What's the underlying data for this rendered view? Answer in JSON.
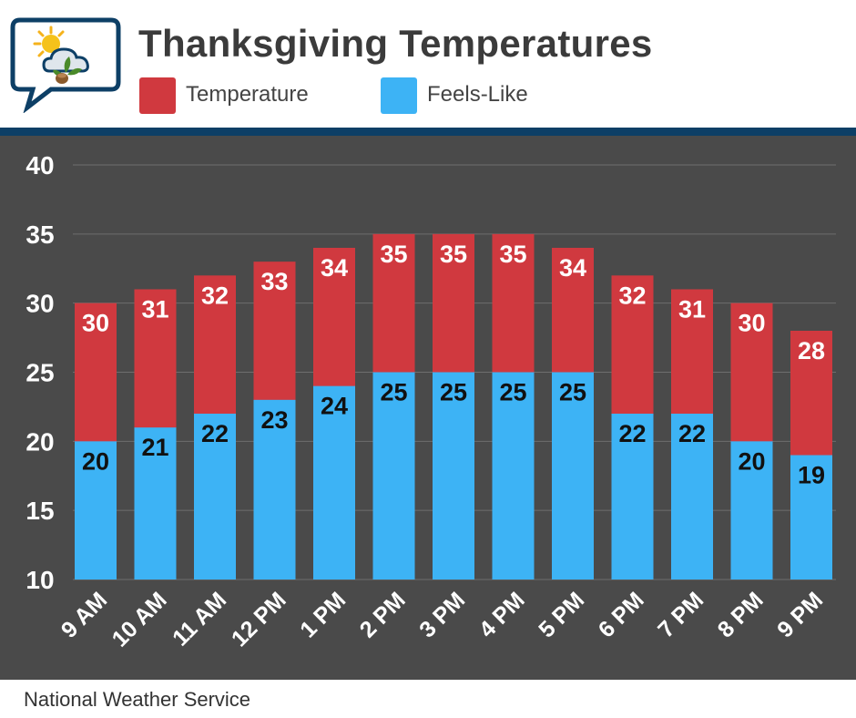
{
  "header": {
    "title": "Thanksgiving Temperatures"
  },
  "legend": {
    "temperature_label": "Temperature",
    "feels_like_label": "Feels-Like"
  },
  "source": "National Weather Service",
  "colors": {
    "temperature": "#d0393f",
    "feels_like": "#3db3f5",
    "background": "#4a4a4a",
    "stripe": "#0d3f66"
  },
  "chart_data": {
    "type": "bar",
    "categories": [
      "9 AM",
      "10 AM",
      "11 AM",
      "12 PM",
      "1 PM",
      "2 PM",
      "3 PM",
      "4 PM",
      "5 PM",
      "6 PM",
      "7 PM",
      "8 PM",
      "9 PM"
    ],
    "series": [
      {
        "name": "Temperature",
        "values": [
          30,
          31,
          32,
          33,
          34,
          35,
          35,
          35,
          34,
          32,
          31,
          30,
          28
        ]
      },
      {
        "name": "Feels-Like",
        "values": [
          20,
          21,
          22,
          23,
          24,
          25,
          25,
          25,
          25,
          22,
          22,
          20,
          19
        ]
      }
    ],
    "ylim": [
      10,
      40
    ],
    "yticks": [
      10,
      15,
      20,
      25,
      30,
      35,
      40
    ],
    "grid": true,
    "legend_position": "top"
  }
}
